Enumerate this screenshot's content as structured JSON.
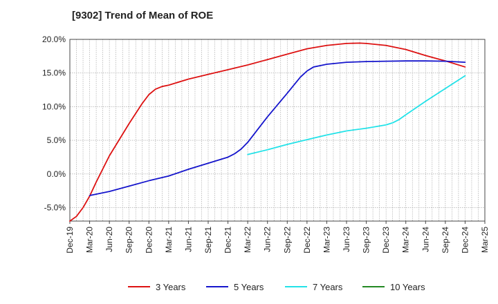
{
  "chart_data": {
    "type": "line",
    "title": "[9302]  Trend of Mean of ROE",
    "xlabel": "",
    "ylabel": "",
    "x_ticks": [
      "Dec-19",
      "Mar-20",
      "Jun-20",
      "Sep-20",
      "Dec-20",
      "Mar-21",
      "Jun-21",
      "Sep-21",
      "Dec-21",
      "Mar-22",
      "Jun-22",
      "Sep-22",
      "Dec-22",
      "Mar-23",
      "Jun-23",
      "Sep-23",
      "Dec-23",
      "Mar-24",
      "Jun-24",
      "Sep-24",
      "Dec-24",
      "Mar-25"
    ],
    "y_ticks": [
      "20.0%",
      "15.0%",
      "10.0%",
      "5.0%",
      "0.0%",
      "-5.0%"
    ],
    "ylim": [
      -7.0,
      20.0
    ],
    "grid": true,
    "legend_position": "bottom",
    "series": [
      {
        "name": "3 Years",
        "color": "#dd1111",
        "points": [
          [
            "Dec-19",
            -7.0
          ],
          [
            "Jan-20",
            -6.3
          ],
          [
            "Feb-20",
            -5.0
          ],
          [
            "Mar-20",
            -3.3
          ],
          [
            "Apr-20",
            -1.2
          ],
          [
            "Jun-20",
            2.7
          ],
          [
            "Sep-20",
            7.5
          ],
          [
            "Nov-20",
            10.5
          ],
          [
            "Dec-20",
            11.8
          ],
          [
            "Jan-21",
            12.6
          ],
          [
            "Feb-21",
            13.0
          ],
          [
            "Mar-21",
            13.2
          ],
          [
            "Jun-21",
            14.1
          ],
          [
            "Sep-21",
            14.8
          ],
          [
            "Dec-21",
            15.5
          ],
          [
            "Mar-22",
            16.2
          ],
          [
            "Jun-22",
            17.0
          ],
          [
            "Sep-22",
            17.8
          ],
          [
            "Dec-22",
            18.6
          ],
          [
            "Mar-23",
            19.1
          ],
          [
            "Jun-23",
            19.4
          ],
          [
            "Aug-23",
            19.45
          ],
          [
            "Sep-23",
            19.4
          ],
          [
            "Dec-23",
            19.1
          ],
          [
            "Mar-24",
            18.5
          ],
          [
            "Jun-24",
            17.6
          ],
          [
            "Sep-24",
            16.8
          ],
          [
            "Dec-24",
            15.9
          ]
        ]
      },
      {
        "name": "5 Years",
        "color": "#1414cc",
        "points": [
          [
            "Mar-20",
            -3.2
          ],
          [
            "Jun-20",
            -2.6
          ],
          [
            "Sep-20",
            -1.8
          ],
          [
            "Dec-20",
            -1.0
          ],
          [
            "Mar-21",
            -0.3
          ],
          [
            "Jun-21",
            0.7
          ],
          [
            "Sep-21",
            1.6
          ],
          [
            "Dec-21",
            2.5
          ],
          [
            "Jan-22",
            3.0
          ],
          [
            "Feb-22",
            3.7
          ],
          [
            "Mar-22",
            4.7
          ],
          [
            "Jun-22",
            8.5
          ],
          [
            "Sep-22",
            12.0
          ],
          [
            "Nov-22",
            14.4
          ],
          [
            "Dec-22",
            15.3
          ],
          [
            "Jan-23",
            15.9
          ],
          [
            "Feb-23",
            16.1
          ],
          [
            "Mar-23",
            16.3
          ],
          [
            "Jun-23",
            16.6
          ],
          [
            "Sep-23",
            16.7
          ],
          [
            "Dec-23",
            16.75
          ],
          [
            "Mar-24",
            16.8
          ],
          [
            "Jun-24",
            16.8
          ],
          [
            "Sep-24",
            16.75
          ],
          [
            "Dec-24",
            16.6
          ]
        ]
      },
      {
        "name": "7 Years",
        "color": "#22e2e8",
        "points": [
          [
            "Mar-22",
            2.9
          ],
          [
            "Jun-22",
            3.6
          ],
          [
            "Sep-22",
            4.4
          ],
          [
            "Dec-22",
            5.1
          ],
          [
            "Mar-23",
            5.8
          ],
          [
            "Jun-23",
            6.4
          ],
          [
            "Sep-23",
            6.8
          ],
          [
            "Dec-23",
            7.3
          ],
          [
            "Jan-24",
            7.6
          ],
          [
            "Feb-24",
            8.1
          ],
          [
            "Mar-24",
            8.8
          ],
          [
            "Jun-24",
            10.8
          ],
          [
            "Sep-24",
            12.7
          ],
          [
            "Dec-24",
            14.6
          ]
        ]
      },
      {
        "name": "10 Years",
        "color": "#228822",
        "points": []
      }
    ]
  }
}
